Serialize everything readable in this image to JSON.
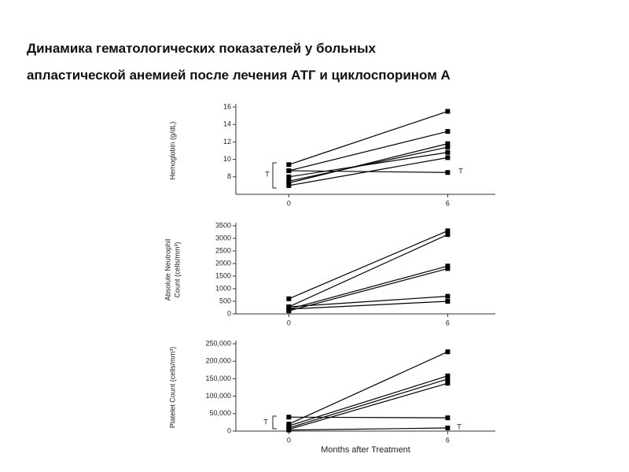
{
  "header": {
    "line1": "Динамика гематологических показателей у больных",
    "line2": "апластической анемией после лечения АТГ и циклоспорином А"
  },
  "chart_data": [
    {
      "type": "line",
      "ylabel": [
        "Hemoglobin (g/dL)"
      ],
      "x": [
        0,
        6
      ],
      "xlim": [
        -2,
        7.8
      ],
      "xticks": [
        0,
        6
      ],
      "ylim": [
        6,
        16
      ],
      "yticks": [
        8,
        10,
        12,
        14,
        16
      ],
      "annotations": [
        "T",
        "T"
      ],
      "series": [
        {
          "color": "#000000",
          "values": [
            9.4,
            15.5
          ]
        },
        {
          "color": "#000000",
          "values": [
            8.7,
            13.2
          ]
        },
        {
          "color": "#000000",
          "values": [
            7.3,
            11.8
          ]
        },
        {
          "color": "#000000",
          "values": [
            7.5,
            11.4
          ]
        },
        {
          "color": "#000000",
          "values": [
            8,
            10.8
          ]
        },
        {
          "color": "#000000",
          "values": [
            7,
            10.2
          ]
        },
        {
          "color": "#000000",
          "values": [
            8.7,
            8.5
          ]
        }
      ]
    },
    {
      "type": "line",
      "ylabel": [
        "Absolute Neutrophil",
        "Count (cells/mm³)"
      ],
      "x": [
        0,
        6
      ],
      "xlim": [
        -2,
        7.8
      ],
      "xticks": [
        0,
        6
      ],
      "ylim": [
        0,
        3500
      ],
      "yticks": [
        0,
        500,
        1000,
        1500,
        2000,
        2500,
        3000,
        3500
      ],
      "annotations": [],
      "series": [
        {
          "color": "#000000",
          "values": [
            600,
            3300
          ]
        },
        {
          "color": "#000000",
          "values": [
            280,
            3150
          ]
        },
        {
          "color": "#000000",
          "values": [
            190,
            1900
          ]
        },
        {
          "color": "#000000",
          "values": [
            120,
            1800
          ]
        },
        {
          "color": "#000000",
          "values": [
            280,
            700
          ]
        },
        {
          "color": "#000000",
          "values": [
            190,
            500
          ]
        }
      ]
    },
    {
      "type": "line",
      "ylabel": [
        "Platelet Count (cells/mm³)"
      ],
      "xlabel": "Months after Treatment",
      "x": [
        0,
        6
      ],
      "xlim": [
        -2,
        7.8
      ],
      "xticks": [
        0,
        6
      ],
      "ylim": [
        0,
        250000
      ],
      "yticks": [
        0,
        {
          "value": 50000,
          "label": "50,000"
        },
        {
          "value": 100000,
          "label": "100,000"
        },
        {
          "value": 150000,
          "label": "150,000"
        },
        {
          "value": 200000,
          "label": "200,000"
        },
        {
          "value": 250000,
          "label": "250,000"
        }
      ],
      "annotations": [
        "T",
        "T"
      ],
      "series": [
        {
          "color": "#000000",
          "values": [
            20000,
            227000
          ]
        },
        {
          "color": "#000000",
          "values": [
            15000,
            158000
          ]
        },
        {
          "color": "#000000",
          "values": [
            9000,
            149000
          ]
        },
        {
          "color": "#000000",
          "values": [
            5000,
            137000
          ]
        },
        {
          "color": "#000000",
          "values": [
            40000,
            38000
          ]
        },
        {
          "color": "#000000",
          "values": [
            3000,
            9000
          ]
        }
      ]
    }
  ]
}
